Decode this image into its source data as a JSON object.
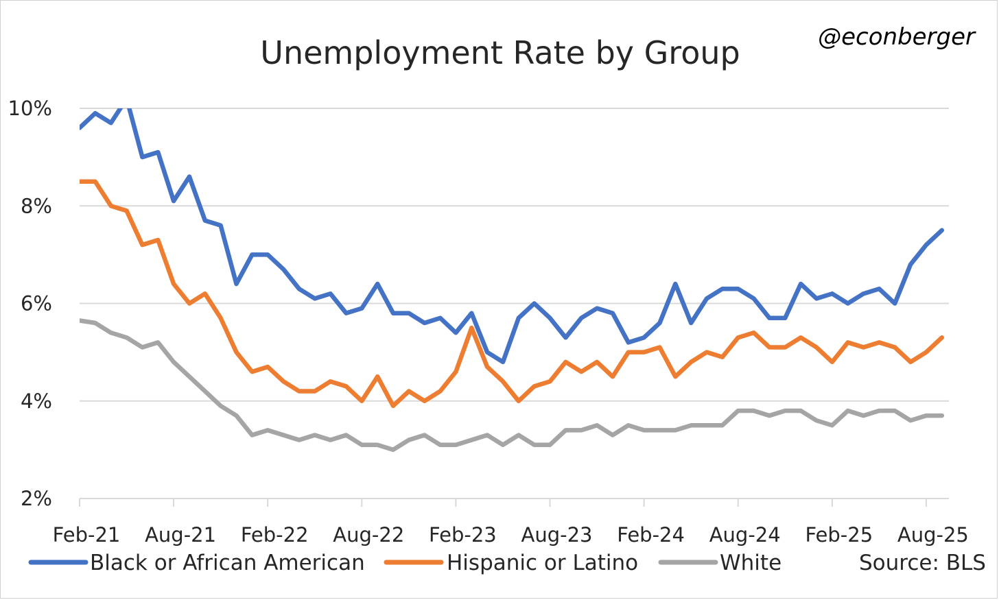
{
  "chart_data": {
    "type": "line",
    "title": "Unemployment Rate by Group",
    "handle": "@econberger",
    "source": "Source: BLS",
    "xlabel": "",
    "ylabel": "",
    "ylim": [
      2,
      10
    ],
    "y_ticks": [
      2,
      4,
      6,
      8,
      10
    ],
    "y_tick_labels": [
      "2%",
      "4%",
      "6%",
      "8%",
      "10%"
    ],
    "x_tick_labels": [
      "Feb-21",
      "Aug-21",
      "Feb-22",
      "Aug-22",
      "Feb-23",
      "Aug-23",
      "Feb-24",
      "Aug-24",
      "Feb-25",
      "Aug-25"
    ],
    "x_tick_indices": [
      0,
      6,
      12,
      18,
      24,
      30,
      36,
      42,
      48,
      54
    ],
    "grid": "horizontal",
    "legend_position": "bottom",
    "series": [
      {
        "name": "Black or African American",
        "color": "#4472C4",
        "values": [
          9.6,
          9.9,
          9.7,
          10.2,
          9.0,
          9.1,
          8.1,
          8.6,
          7.7,
          7.6,
          6.4,
          7.0,
          7.0,
          6.7,
          6.3,
          6.1,
          6.2,
          5.8,
          5.9,
          6.4,
          5.8,
          5.8,
          5.6,
          5.7,
          5.4,
          5.8,
          5.0,
          4.8,
          5.7,
          6.0,
          5.7,
          5.3,
          5.7,
          5.9,
          5.8,
          5.2,
          5.3,
          5.6,
          6.4,
          5.6,
          6.1,
          6.3,
          6.3,
          6.1,
          5.7,
          5.7,
          6.4,
          6.1,
          6.2,
          6.0,
          6.2,
          6.3,
          6.0,
          6.8,
          7.2,
          7.5
        ]
      },
      {
        "name": "Hispanic or Latino",
        "color": "#ED7D31",
        "values": [
          8.5,
          8.5,
          8.0,
          7.9,
          7.2,
          7.3,
          6.4,
          6.0,
          6.2,
          5.7,
          5.0,
          4.6,
          4.7,
          4.4,
          4.2,
          4.2,
          4.4,
          4.3,
          4.0,
          4.5,
          3.9,
          4.2,
          4.0,
          4.2,
          4.6,
          5.5,
          4.7,
          4.4,
          4.0,
          4.3,
          4.4,
          4.8,
          4.6,
          4.8,
          4.5,
          5.0,
          5.0,
          5.1,
          4.5,
          4.8,
          5.0,
          4.9,
          5.3,
          5.4,
          5.1,
          5.1,
          5.3,
          5.1,
          4.8,
          5.2,
          5.1,
          5.2,
          5.1,
          4.8,
          5.0,
          5.3
        ]
      },
      {
        "name": "White",
        "color": "#A5A5A5",
        "values": [
          5.65,
          5.6,
          5.4,
          5.3,
          5.1,
          5.2,
          4.8,
          4.5,
          4.2,
          3.9,
          3.7,
          3.3,
          3.4,
          3.3,
          3.2,
          3.3,
          3.2,
          3.3,
          3.1,
          3.1,
          3.0,
          3.2,
          3.3,
          3.1,
          3.1,
          3.2,
          3.3,
          3.1,
          3.3,
          3.1,
          3.1,
          3.4,
          3.4,
          3.5,
          3.3,
          3.5,
          3.4,
          3.4,
          3.4,
          3.5,
          3.5,
          3.5,
          3.8,
          3.8,
          3.7,
          3.8,
          3.8,
          3.6,
          3.5,
          3.8,
          3.7,
          3.8,
          3.8,
          3.6,
          3.7,
          3.7
        ]
      }
    ]
  }
}
